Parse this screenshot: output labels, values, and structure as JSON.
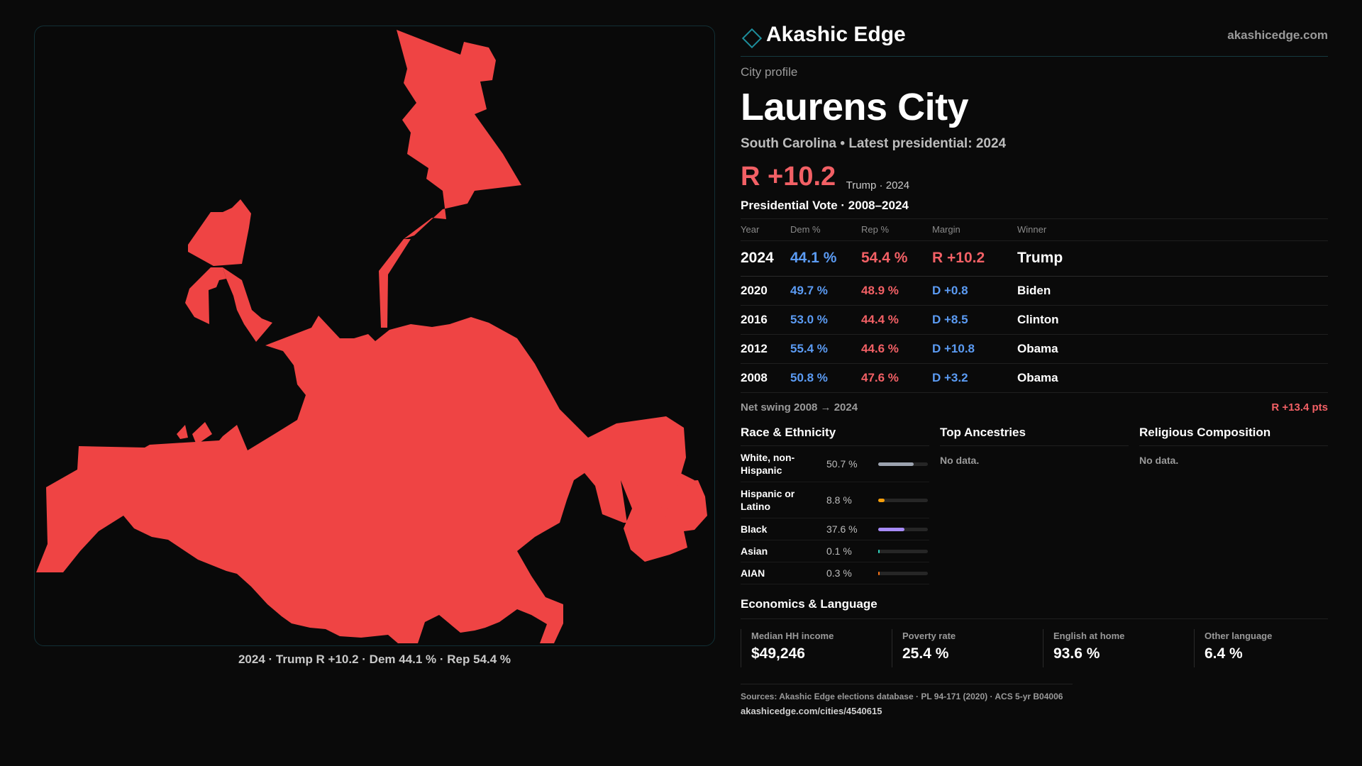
{
  "brand": {
    "name": "Akashic Edge",
    "url": "akashicedge.com",
    "accent": "#1d8e9c"
  },
  "profile": {
    "kicker": "City profile",
    "city": "Laurens City",
    "subtitle": "South Carolina • Latest presidential: 2024",
    "margin": "R +10.2",
    "margin_note": "Trump · 2024"
  },
  "map": {
    "fill_color": "#ef4444",
    "caption": "2024 · Trump R +10.2 · Dem 44.1 % · Rep 54.4 %"
  },
  "votes": {
    "title": "Presidential Vote · 2008–2024",
    "columns": [
      "Year",
      "Dem %",
      "Rep %",
      "Margin",
      "Winner"
    ],
    "rows": [
      {
        "year": "2024",
        "dem": "44.1 %",
        "rep": "54.4 %",
        "margin": "R +10.2",
        "party": "R",
        "winner": "Trump"
      },
      {
        "year": "2020",
        "dem": "49.7 %",
        "rep": "48.9 %",
        "margin": "D +0.8",
        "party": "D",
        "winner": "Biden"
      },
      {
        "year": "2016",
        "dem": "53.0 %",
        "rep": "44.4 %",
        "margin": "D +8.5",
        "party": "D",
        "winner": "Clinton"
      },
      {
        "year": "2012",
        "dem": "55.4 %",
        "rep": "44.6 %",
        "margin": "D +10.8",
        "party": "D",
        "winner": "Obama"
      },
      {
        "year": "2008",
        "dem": "50.8 %",
        "rep": "47.6 %",
        "margin": "D +3.2",
        "party": "D",
        "winner": "Obama"
      }
    ],
    "swing_label": "Net swing 2008 → 2024",
    "swing_value": "R +13.4 pts"
  },
  "race": {
    "title": "Race & Ethnicity",
    "rows": [
      {
        "label": "White, non-Hispanic",
        "value": "50.7 %",
        "share": 0.507,
        "color": "#9ca3af"
      },
      {
        "label": "Hispanic or Latino",
        "value": "8.8 %",
        "share": 0.088,
        "color": "#f59e0b"
      },
      {
        "label": "Black",
        "value": "37.6 %",
        "share": 0.376,
        "color": "#a78bfa"
      },
      {
        "label": "Asian",
        "value": "0.1 %",
        "share": 0.001,
        "color": "#2dd4bf"
      },
      {
        "label": "AIAN",
        "value": "0.3 %",
        "share": 0.003,
        "color": "#f97316"
      }
    ]
  },
  "ancestries": {
    "title": "Top Ancestries",
    "empty": "No data."
  },
  "religion": {
    "title": "Religious Composition",
    "empty": "No data."
  },
  "economics": {
    "title": "Economics & Language",
    "items": [
      {
        "label": "Median HH income",
        "value": "$49,246"
      },
      {
        "label": "Poverty rate",
        "value": "25.4 %"
      },
      {
        "label": "English at home",
        "value": "93.6 %"
      },
      {
        "label": "Other language",
        "value": "6.4 %"
      }
    ]
  },
  "sources": {
    "line": "Sources: Akashic Edge elections database · PL 94-171 (2020) · ACS 5-yr B04006",
    "url": "akashicedge.com/cities/4540615"
  }
}
